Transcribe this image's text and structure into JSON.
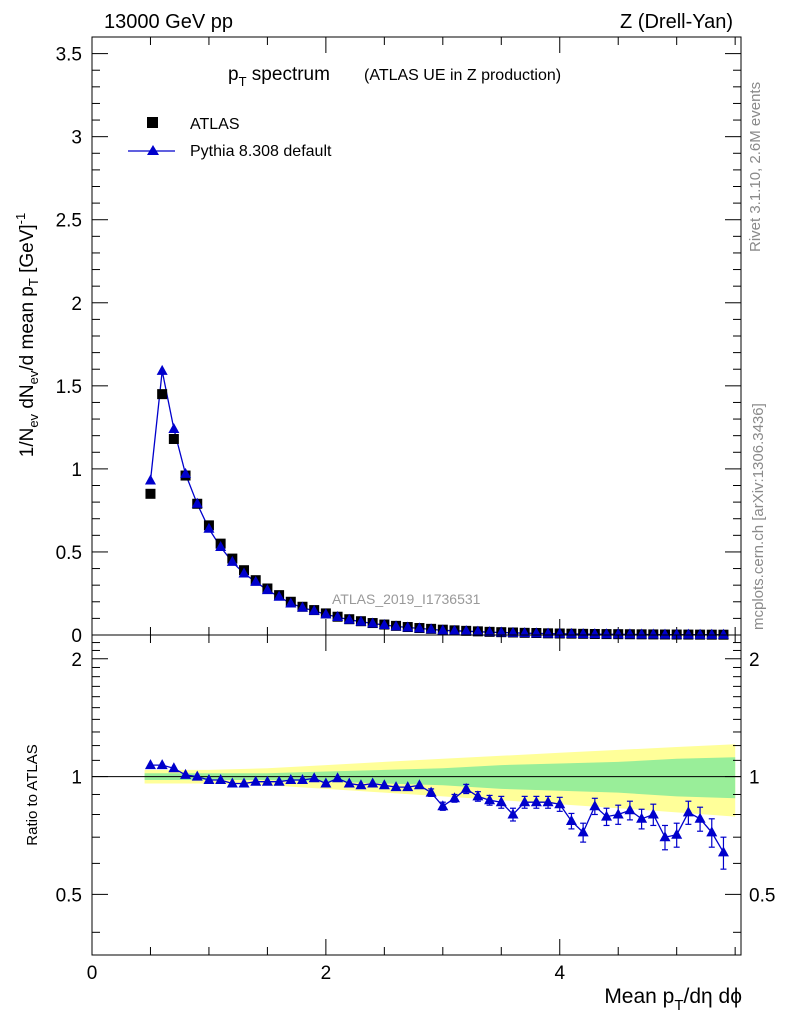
{
  "header": {
    "energy_label": "13000 GeV pp",
    "process_label": "Z (Drell-Yan)"
  },
  "side_labels": {
    "rivet": "Rivet 3.1.10,  2.6M events",
    "mcplots": "mcplots.cern.ch [arXiv:1306.3436]"
  },
  "chart_data": [
    {
      "type": "scatter",
      "title": "p_T spectrum",
      "title_main": "p",
      "title_sub": "T",
      "title_rest": " spectrum",
      "subtitle": "(ATLAS UE in Z production)",
      "ylabel": "1/N_ev dN_ev/d mean p_T [GeV]^-1",
      "xlim": [
        0,
        5.55
      ],
      "ylim": [
        0,
        3.6
      ],
      "y_ticks": [
        "0",
        "0.5",
        "1",
        "1.5",
        "2",
        "2.5",
        "3",
        "3.5"
      ],
      "watermark": "ATLAS_2019_I1736531",
      "legend_position": "top-left",
      "legend": [
        "ATLAS",
        "Pythia 8.308 default"
      ],
      "x": [
        0.5,
        0.6,
        0.7,
        0.8,
        0.9,
        1.0,
        1.1,
        1.2,
        1.3,
        1.4,
        1.5,
        1.6,
        1.7,
        1.8,
        1.9,
        2.0,
        2.1,
        2.2,
        2.3,
        2.4,
        2.5,
        2.6,
        2.7,
        2.8,
        2.9,
        3.0,
        3.1,
        3.2,
        3.3,
        3.4,
        3.5,
        3.6,
        3.7,
        3.8,
        3.9,
        4.0,
        4.1,
        4.2,
        4.3,
        4.4,
        4.5,
        4.6,
        4.7,
        4.8,
        4.9,
        5.0,
        5.1,
        5.2,
        5.3,
        5.4
      ],
      "series": [
        {
          "name": "ATLAS",
          "color": "#000000",
          "marker": "square",
          "values": [
            0.85,
            1.45,
            1.18,
            0.96,
            0.79,
            0.66,
            0.55,
            0.46,
            0.39,
            0.33,
            0.28,
            0.24,
            0.2,
            0.17,
            0.15,
            0.13,
            0.11,
            0.095,
            0.083,
            0.072,
            0.063,
            0.055,
            0.048,
            0.042,
            0.037,
            0.032,
            0.028,
            0.025,
            0.022,
            0.019,
            0.017,
            0.015,
            0.013,
            0.012,
            0.01,
            0.009,
            0.008,
            0.007,
            0.006,
            0.0055,
            0.005,
            0.0045,
            0.004,
            0.0035,
            0.003,
            0.0028,
            0.0025,
            0.0022,
            0.002,
            0.0018
          ]
        },
        {
          "name": "Pythia 8.308 default",
          "color": "#0000cc",
          "marker": "triangle",
          "values": [
            0.93,
            1.59,
            1.24,
            0.97,
            0.79,
            0.64,
            0.53,
            0.44,
            0.37,
            0.32,
            0.27,
            0.23,
            0.19,
            0.165,
            0.145,
            0.124,
            0.108,
            0.092,
            0.08,
            0.069,
            0.06,
            0.052,
            0.045,
            0.04,
            0.034,
            0.028,
            0.025,
            0.023,
            0.02,
            0.017,
            0.015,
            0.013,
            0.011,
            0.01,
            0.0085,
            0.0075,
            0.0065,
            0.0055,
            0.005,
            0.0045,
            0.004,
            0.0036,
            0.0032,
            0.0028,
            0.0024,
            0.0022,
            0.002,
            0.0018,
            0.0016,
            0.0014
          ]
        }
      ]
    },
    {
      "type": "scatter",
      "ylabel": "Ratio to ATLAS",
      "xlabel": "Mean p_T/dη dϕ",
      "xlabel_main": "Mean p",
      "xlabel_sub": "T",
      "xlabel_rest": "/dη dϕ",
      "xlim": [
        0,
        5.55
      ],
      "ylim": [
        0.35,
        2.3
      ],
      "x_ticks": [
        "0",
        "2",
        "4"
      ],
      "y_ticks": [
        "0.5",
        "1",
        "2"
      ],
      "reference_line": 1,
      "band_outer_color": "#ffff99",
      "band_inner_color": "#99ee99",
      "band_x": [
        0.45,
        1.0,
        1.5,
        2.0,
        2.5,
        3.0,
        3.5,
        4.0,
        4.5,
        5.0,
        5.5
      ],
      "band_outer_half_width": [
        0.04,
        0.04,
        0.05,
        0.07,
        0.09,
        0.11,
        0.13,
        0.15,
        0.17,
        0.19,
        0.21
      ],
      "band_inner_half_width": [
        0.02,
        0.02,
        0.02,
        0.03,
        0.04,
        0.05,
        0.07,
        0.08,
        0.09,
        0.11,
        0.12
      ],
      "x": [
        0.5,
        0.6,
        0.7,
        0.8,
        0.9,
        1.0,
        1.1,
        1.2,
        1.3,
        1.4,
        1.5,
        1.6,
        1.7,
        1.8,
        1.9,
        2.0,
        2.1,
        2.2,
        2.3,
        2.4,
        2.5,
        2.6,
        2.7,
        2.8,
        2.9,
        3.0,
        3.1,
        3.2,
        3.3,
        3.4,
        3.5,
        3.6,
        3.7,
        3.8,
        3.9,
        4.0,
        4.1,
        4.2,
        4.3,
        4.4,
        4.5,
        4.6,
        4.7,
        4.8,
        4.9,
        5.0,
        5.1,
        5.2,
        5.3,
        5.4
      ],
      "series": [
        {
          "name": "Pythia 8.308 default",
          "color": "#0000cc",
          "values": [
            1.07,
            1.07,
            1.05,
            1.01,
            1.0,
            0.98,
            0.98,
            0.96,
            0.96,
            0.97,
            0.97,
            0.97,
            0.98,
            0.98,
            0.99,
            0.96,
            0.99,
            0.96,
            0.95,
            0.96,
            0.95,
            0.94,
            0.94,
            0.95,
            0.91,
            0.84,
            0.88,
            0.93,
            0.89,
            0.87,
            0.86,
            0.8,
            0.86,
            0.86,
            0.86,
            0.85,
            0.77,
            0.72,
            0.84,
            0.79,
            0.8,
            0.82,
            0.78,
            0.8,
            0.7,
            0.71,
            0.81,
            0.78,
            0.72,
            0.64
          ],
          "errors": [
            0.01,
            0.01,
            0.01,
            0.01,
            0.01,
            0.01,
            0.01,
            0.01,
            0.01,
            0.01,
            0.01,
            0.01,
            0.01,
            0.01,
            0.01,
            0.01,
            0.01,
            0.01,
            0.01,
            0.015,
            0.015,
            0.015,
            0.015,
            0.015,
            0.02,
            0.02,
            0.02,
            0.025,
            0.025,
            0.025,
            0.03,
            0.03,
            0.03,
            0.03,
            0.03,
            0.035,
            0.035,
            0.04,
            0.04,
            0.04,
            0.045,
            0.045,
            0.045,
            0.05,
            0.05,
            0.05,
            0.055,
            0.055,
            0.06,
            0.06
          ]
        }
      ]
    }
  ]
}
